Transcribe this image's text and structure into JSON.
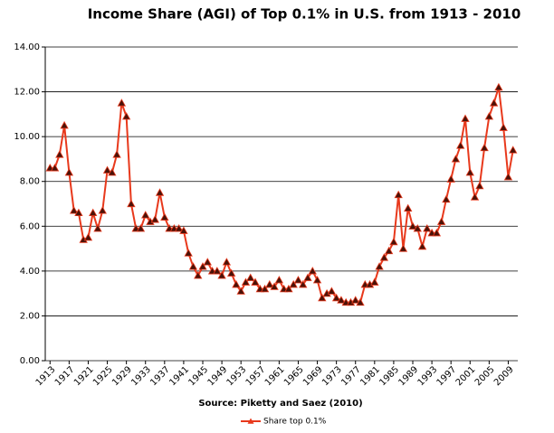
{
  "chart_data": {
    "type": "line",
    "title": "Income Share (AGI) of Top 0.1% in U.S. from 1913 - 2010",
    "source": "Source:  Piketty and Saez (2010)",
    "x": [
      1913,
      1914,
      1915,
      1916,
      1917,
      1918,
      1919,
      1920,
      1921,
      1922,
      1923,
      1924,
      1925,
      1926,
      1927,
      1928,
      1929,
      1930,
      1931,
      1932,
      1933,
      1934,
      1935,
      1936,
      1937,
      1938,
      1939,
      1940,
      1941,
      1942,
      1943,
      1944,
      1945,
      1946,
      1947,
      1948,
      1949,
      1950,
      1951,
      1952,
      1953,
      1954,
      1955,
      1956,
      1957,
      1958,
      1959,
      1960,
      1961,
      1962,
      1963,
      1964,
      1965,
      1966,
      1967,
      1968,
      1969,
      1970,
      1971,
      1972,
      1973,
      1974,
      1975,
      1976,
      1977,
      1978,
      1979,
      1980,
      1981,
      1982,
      1983,
      1984,
      1985,
      1986,
      1987,
      1988,
      1989,
      1990,
      1991,
      1992,
      1993,
      1994,
      1995,
      1996,
      1997,
      1998,
      1999,
      2000,
      2001,
      2002,
      2003,
      2004,
      2005,
      2006,
      2007,
      2008,
      2009,
      2010
    ],
    "series": [
      {
        "name": "Share top 0.1%",
        "color": "#e8391c",
        "marker_color": "#4a1208",
        "values": [
          8.6,
          8.6,
          9.2,
          10.5,
          8.4,
          6.7,
          6.6,
          5.4,
          5.5,
          6.6,
          5.9,
          6.7,
          8.5,
          8.4,
          9.2,
          11.5,
          10.9,
          7.0,
          5.9,
          5.9,
          6.5,
          6.2,
          6.3,
          7.5,
          6.4,
          5.9,
          5.9,
          5.9,
          5.8,
          4.8,
          4.2,
          3.8,
          4.2,
          4.4,
          4.0,
          4.0,
          3.8,
          4.4,
          3.9,
          3.4,
          3.1,
          3.5,
          3.7,
          3.5,
          3.2,
          3.2,
          3.4,
          3.3,
          3.6,
          3.2,
          3.2,
          3.4,
          3.6,
          3.4,
          3.7,
          4.0,
          3.6,
          2.8,
          3.0,
          3.1,
          2.8,
          2.7,
          2.6,
          2.6,
          2.7,
          2.6,
          3.4,
          3.4,
          3.5,
          4.2,
          4.6,
          4.9,
          5.3,
          7.4,
          5.0,
          6.8,
          6.0,
          5.9,
          5.1,
          5.9,
          5.7,
          5.7,
          6.2,
          7.2,
          8.1,
          9.0,
          9.6,
          10.8,
          8.4,
          7.3,
          7.8,
          9.5,
          10.9,
          11.5,
          12.2,
          10.4,
          8.2,
          9.4
        ]
      }
    ],
    "xlim": [
      1912,
      2011
    ],
    "xticks": [
      1913,
      1917,
      1921,
      1925,
      1929,
      1933,
      1937,
      1941,
      1945,
      1949,
      1953,
      1957,
      1961,
      1965,
      1969,
      1973,
      1977,
      1981,
      1985,
      1989,
      1993,
      1997,
      2001,
      2005,
      2009
    ],
    "ylim": [
      0,
      14
    ],
    "yticks": [
      {
        "value": 0,
        "label": "0.00"
      },
      {
        "value": 2,
        "label": "2.00"
      },
      {
        "value": 4,
        "label": "4.00"
      },
      {
        "value": 6,
        "label": "6.00"
      },
      {
        "value": 8,
        "label": "8.00"
      },
      {
        "value": 10,
        "label": "10.00"
      },
      {
        "value": 12,
        "label": "12.00"
      },
      {
        "value": 14,
        "label": "14.00"
      }
    ],
    "grid": true
  }
}
